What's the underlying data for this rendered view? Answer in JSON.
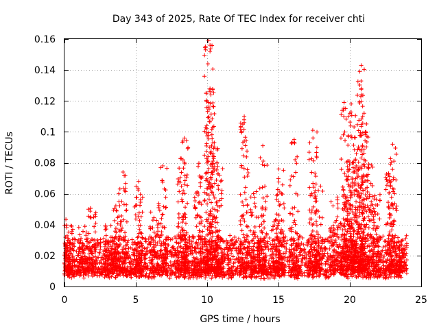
{
  "chart_data": {
    "type": "scatter",
    "title": "Day 343 of 2025, Rate Of TEC Index for receiver chti",
    "xlabel": "GPS time / hours",
    "ylabel": "ROTI / TECUs",
    "xlim": [
      0,
      25
    ],
    "ylim": [
      0,
      0.16
    ],
    "xticks": [
      0,
      5,
      10,
      15,
      20,
      25
    ],
    "xtick_labels": [
      "0",
      "5",
      "10",
      "15",
      "20",
      "25"
    ],
    "yticks": [
      0,
      0.02,
      0.04,
      0.06,
      0.08,
      0.1,
      0.12,
      0.14,
      0.16
    ],
    "ytick_labels": [
      "0",
      "0.02",
      "0.04",
      "0.06",
      "0.08",
      "0.1",
      "0.12",
      "0.14",
      "0.16"
    ],
    "grid": true,
    "marker": "+",
    "color": "#ff0000",
    "x_extent": [
      0.0,
      24.0
    ],
    "baseline_band": [
      0.005,
      0.03
    ],
    "bursts": [
      {
        "t": 0.1,
        "peak": 0.048
      },
      {
        "t": 0.3,
        "peak": 0.04
      },
      {
        "t": 1.3,
        "peak": 0.04
      },
      {
        "t": 1.9,
        "peak": 0.051
      },
      {
        "t": 3.1,
        "peak": 0.04
      },
      {
        "t": 3.7,
        "peak": 0.053
      },
      {
        "t": 4.1,
        "peak": 0.074
      },
      {
        "t": 5.2,
        "peak": 0.068
      },
      {
        "t": 6.3,
        "peak": 0.05
      },
      {
        "t": 6.9,
        "peak": 0.078
      },
      {
        "t": 8.2,
        "peak": 0.082
      },
      {
        "t": 8.4,
        "peak": 0.096
      },
      {
        "t": 9.4,
        "peak": 0.08
      },
      {
        "t": 10.1,
        "peak": 0.158
      },
      {
        "t": 10.2,
        "peak": 0.127
      },
      {
        "t": 10.5,
        "peak": 0.093
      },
      {
        "t": 10.8,
        "peak": 0.08
      },
      {
        "t": 12.6,
        "peak": 0.11
      },
      {
        "t": 13.3,
        "peak": 0.065
      },
      {
        "t": 13.9,
        "peak": 0.09
      },
      {
        "t": 14.8,
        "peak": 0.045
      },
      {
        "t": 15.1,
        "peak": 0.076
      },
      {
        "t": 16.1,
        "peak": 0.095
      },
      {
        "t": 17.4,
        "peak": 0.101
      },
      {
        "t": 17.8,
        "peak": 0.065
      },
      {
        "t": 18.9,
        "peak": 0.06
      },
      {
        "t": 19.6,
        "peak": 0.118
      },
      {
        "t": 20.1,
        "peak": 0.118
      },
      {
        "t": 20.4,
        "peak": 0.095
      },
      {
        "t": 20.8,
        "peak": 0.143
      },
      {
        "t": 21.0,
        "peak": 0.111
      },
      {
        "t": 21.9,
        "peak": 0.06
      },
      {
        "t": 22.8,
        "peak": 0.075
      },
      {
        "t": 23.0,
        "peak": 0.091
      },
      {
        "t": 23.7,
        "peak": 0.03
      }
    ],
    "notable_points": [
      {
        "x": 10.1,
        "y": 0.159
      },
      {
        "x": 10.2,
        "y": 0.156
      },
      {
        "x": 10.2,
        "y": 0.152
      },
      {
        "x": 10.2,
        "y": 0.128
      },
      {
        "x": 10.2,
        "y": 0.126
      },
      {
        "x": 10.1,
        "y": 0.119
      },
      {
        "x": 20.8,
        "y": 0.143
      },
      {
        "x": 20.7,
        "y": 0.139
      },
      {
        "x": 20.8,
        "y": 0.128
      },
      {
        "x": 20.8,
        "y": 0.124
      },
      {
        "x": 21.0,
        "y": 0.112
      },
      {
        "x": 20.9,
        "y": 0.11
      },
      {
        "x": 19.6,
        "y": 0.119
      },
      {
        "x": 20.1,
        "y": 0.118
      },
      {
        "x": 19.7,
        "y": 0.115
      },
      {
        "x": 20.0,
        "y": 0.112
      },
      {
        "x": 12.6,
        "y": 0.11
      },
      {
        "x": 12.6,
        "y": 0.106
      },
      {
        "x": 12.5,
        "y": 0.105
      },
      {
        "x": 12.6,
        "y": 0.094
      },
      {
        "x": 17.4,
        "y": 0.101
      },
      {
        "x": 8.4,
        "y": 0.096
      },
      {
        "x": 10.5,
        "y": 0.093
      },
      {
        "x": 13.9,
        "y": 0.091
      },
      {
        "x": 16.1,
        "y": 0.095
      },
      {
        "x": 23.0,
        "y": 0.092
      },
      {
        "x": 6.9,
        "y": 0.078
      },
      {
        "x": 4.1,
        "y": 0.074
      },
      {
        "x": 5.2,
        "y": 0.068
      }
    ]
  }
}
